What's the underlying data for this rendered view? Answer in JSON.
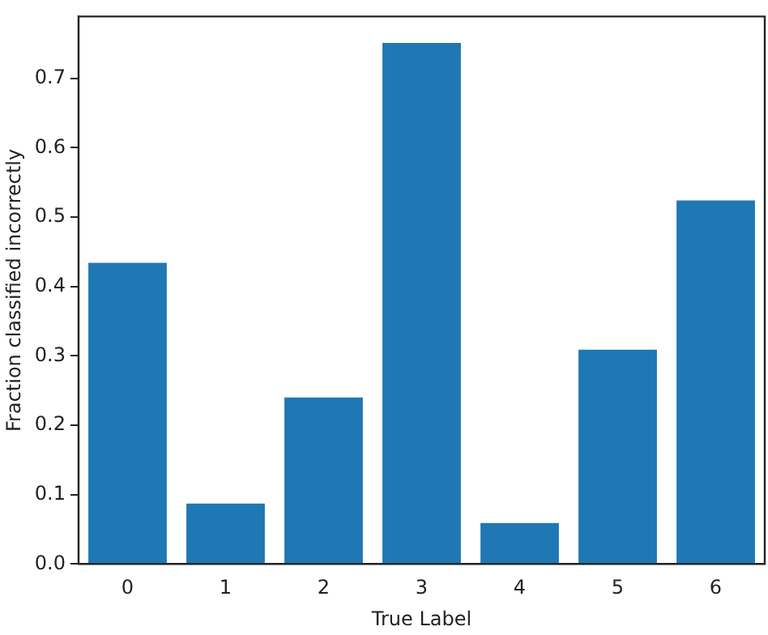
{
  "chart_data": {
    "type": "bar",
    "xlabel": "True Label",
    "ylabel": "Fraction classified incorrectly",
    "categories": [
      "0",
      "1",
      "2",
      "3",
      "4",
      "5",
      "6"
    ],
    "values": [
      0.434,
      0.087,
      0.24,
      0.751,
      0.059,
      0.309,
      0.524
    ],
    "color": "#1f77b4",
    "ylim": [
      0,
      0.789
    ],
    "yticks": [
      {
        "value": 0,
        "label": "0.0"
      },
      0.1,
      0.2,
      0.3,
      0.4,
      0.5,
      0.6,
      0.7
    ],
    "grid": false,
    "legend": false
  }
}
